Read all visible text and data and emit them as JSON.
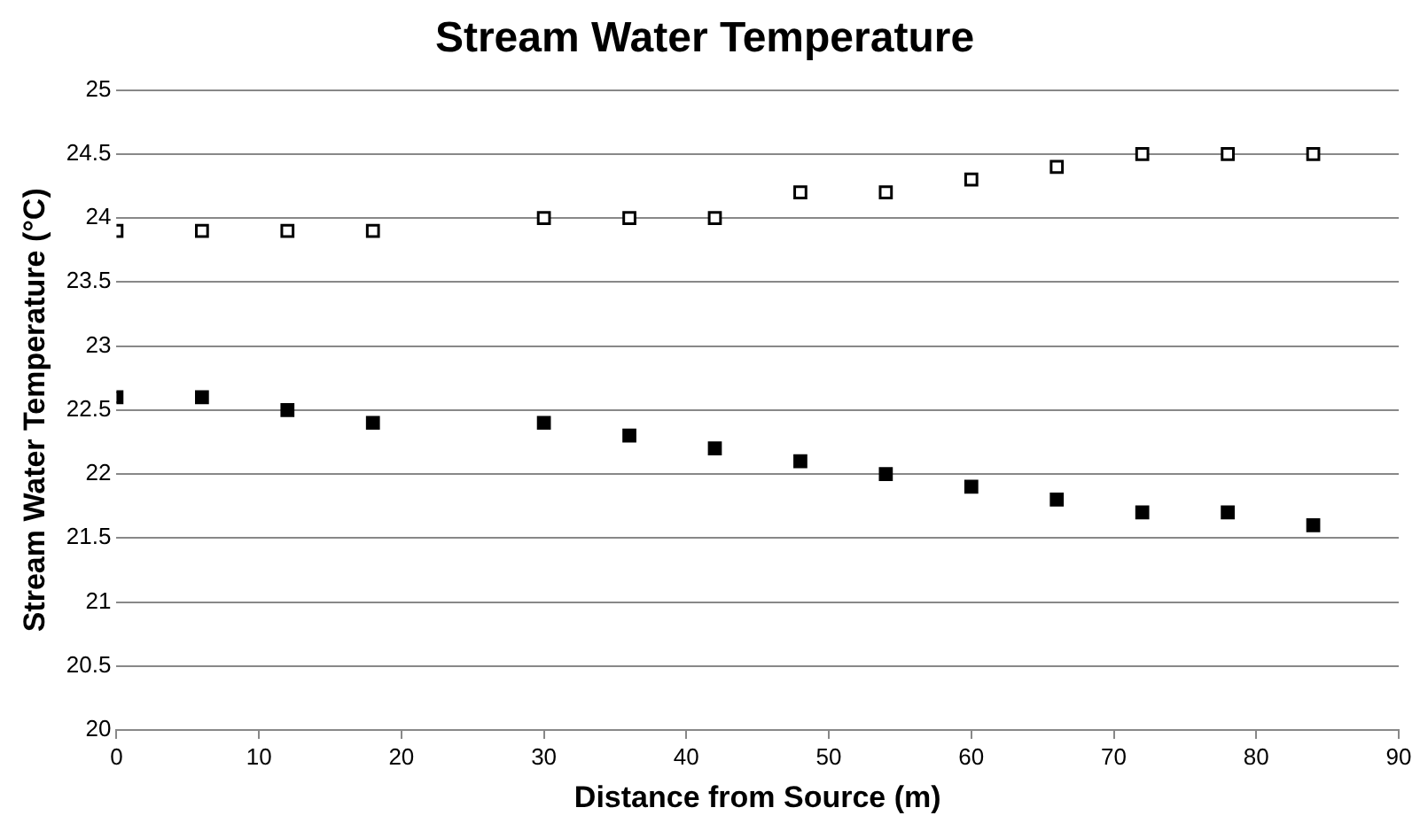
{
  "chart_data": {
    "type": "scatter",
    "title": "Stream Water Temperature",
    "xlabel": "Distance from Source (m)",
    "ylabel": "Stream Water Temperature (°C)",
    "x": [
      0,
      6,
      12,
      18,
      30,
      36,
      42,
      48,
      54,
      60,
      66,
      72,
      78,
      84
    ],
    "series": [
      {
        "color": "#000000",
        "values": [
          23.9,
          23.9,
          23.9,
          23.9,
          24.0,
          24.0,
          24.0,
          24.2,
          24.2,
          24.3,
          24.4,
          24.5,
          24.5,
          24.5
        ]
      },
      {
        "color": "#000000",
        "values": [
          22.6,
          22.6,
          22.5,
          22.4,
          22.4,
          22.3,
          22.2,
          22.1,
          22.0,
          21.9,
          21.8,
          21.7,
          21.7,
          21.6
        ]
      }
    ],
    "xlim": [
      0,
      90
    ],
    "xticks": [
      0,
      10,
      20,
      30,
      40,
      50,
      60,
      70,
      80,
      90
    ],
    "ylim": [
      20,
      25
    ],
    "yticks": [
      20,
      20.5,
      21,
      21.5,
      22,
      22.5,
      23,
      23.5,
      24,
      24.5,
      25
    ],
    "grid": "y",
    "legend": false,
    "marker": "square"
  }
}
